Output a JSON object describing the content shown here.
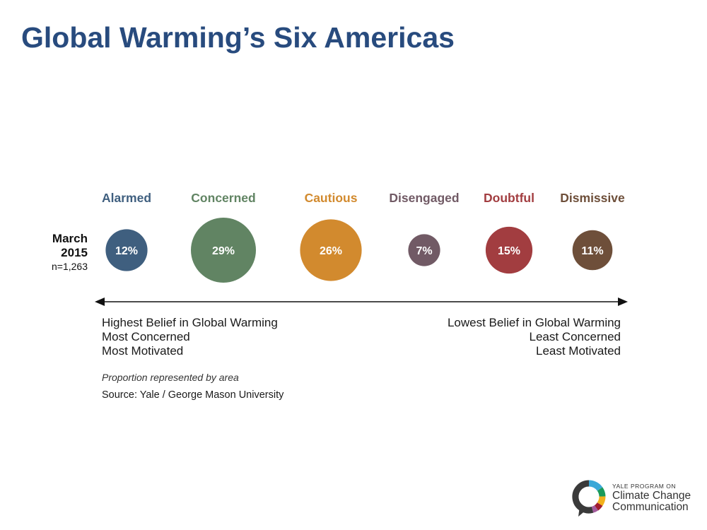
{
  "title": "Global Warming’s Six Americas",
  "period": {
    "label": "March",
    "year": "2015",
    "sample": "n=1,263"
  },
  "chart_data": {
    "type": "bubble",
    "title": "Global Warming’s Six Americas",
    "note": "Proportion represented by area",
    "categories": [
      "Alarmed",
      "Concerned",
      "Cautious",
      "Disengaged",
      "Doubtful",
      "Dismissive"
    ],
    "values": [
      12,
      29,
      26,
      7,
      15,
      11
    ],
    "value_labels": [
      "12%",
      "29%",
      "26%",
      "7%",
      "15%",
      "11%"
    ],
    "colors": [
      "#3f5f7f",
      "#618463",
      "#d28a2e",
      "#715a65",
      "#a23d40",
      "#6e4f3a"
    ],
    "label_colors": [
      "#3f5f7f",
      "#618463",
      "#d28a2e",
      "#715a65",
      "#a23d40",
      "#6e4f3a"
    ],
    "series_name": "March 2015 (n=1,263)",
    "axis": {
      "left": [
        "Highest Belief in Global Warming",
        "Most Concerned",
        "Most Motivated"
      ],
      "right": [
        "Lowest Belief in Global Warming",
        "Least Concerned",
        "Least Motivated"
      ]
    }
  },
  "note": "Proportion represented by area",
  "source": "Source: Yale / George Mason University",
  "logo": {
    "line1": "YALE PROGRAM ON",
    "line2": "Climate Change",
    "line3": "Communication"
  }
}
